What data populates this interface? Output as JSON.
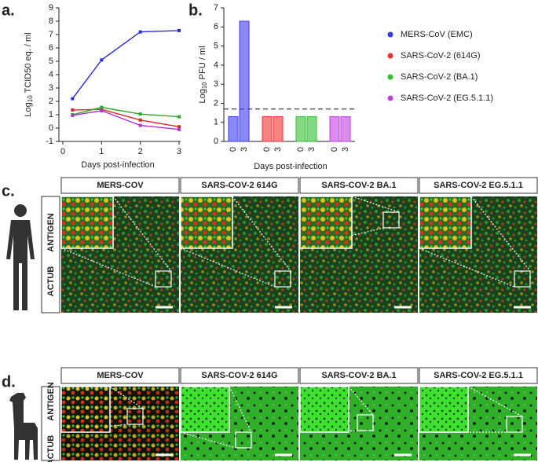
{
  "panel_labels": [
    "a.",
    "b.",
    "c.",
    "d."
  ],
  "chart_data": [
    {
      "type": "line",
      "ylabel": {
        "base": "Log",
        "sub": "10",
        "rest": " TCID50 eq. / ml"
      },
      "xlabel": "Days post-infection",
      "x": [
        0.25,
        1,
        2,
        3
      ],
      "xlim": [
        0,
        3
      ],
      "xticks": [
        0,
        1,
        2,
        3
      ],
      "ylim": [
        -1,
        9
      ],
      "yticks": [
        -1,
        0,
        1,
        2,
        3,
        4,
        5,
        6,
        7,
        8,
        9
      ],
      "series": [
        {
          "color": "#2a2ae0",
          "values": [
            2.2,
            5.1,
            7.2,
            7.3
          ]
        },
        {
          "color": "#e02424",
          "values": [
            1.35,
            1.4,
            0.6,
            0.1
          ]
        },
        {
          "color": "#2aaa2a",
          "values": [
            1.0,
            1.55,
            1.05,
            0.85
          ]
        },
        {
          "color": "#b030d0",
          "values": [
            0.95,
            1.3,
            0.2,
            -0.1
          ]
        }
      ]
    },
    {
      "type": "bar",
      "ylabel": {
        "base": "Log",
        "sub": "10",
        "rest": " PFU / ml"
      },
      "xlabel": "Days post-infection",
      "categories": [
        "0",
        "3"
      ],
      "ylim": [
        0,
        7
      ],
      "yticks": [
        0,
        1,
        2,
        3,
        4,
        5,
        6,
        7
      ],
      "threshold": 1.7,
      "series": [
        {
          "name": "MERS-CoV (EMC)",
          "color": "#3a3af0",
          "values": [
            1.3,
            6.3
          ]
        },
        {
          "name": "SARS-CoV-2 (614G)",
          "color": "#f03030",
          "values": [
            1.3,
            1.3
          ]
        },
        {
          "name": "SARS-CoV-2 (BA.1)",
          "color": "#30c030",
          "values": [
            1.3,
            1.3
          ]
        },
        {
          "name": "SARS-CoV-2 (EG.5.1.1)",
          "color": "#c040e0",
          "values": [
            1.3,
            1.3
          ]
        }
      ]
    }
  ],
  "image_rows": [
    {
      "columns": [
        "MERS-COV",
        "SARS-COV-2 614G",
        "SARS-COV-2 BA.1",
        "SARS-COV-2 EG.5.1.1"
      ],
      "stains": [
        "ANTIGEN",
        "ACTUB"
      ]
    },
    {
      "columns": [
        "MERS-COV",
        "SARS-COV-2 614G",
        "SARS-COV-2 BA.1",
        "SARS-COV-2 EG.5.1.1"
      ],
      "stains": [
        "ANTIGEN",
        "ACTUB"
      ]
    }
  ]
}
